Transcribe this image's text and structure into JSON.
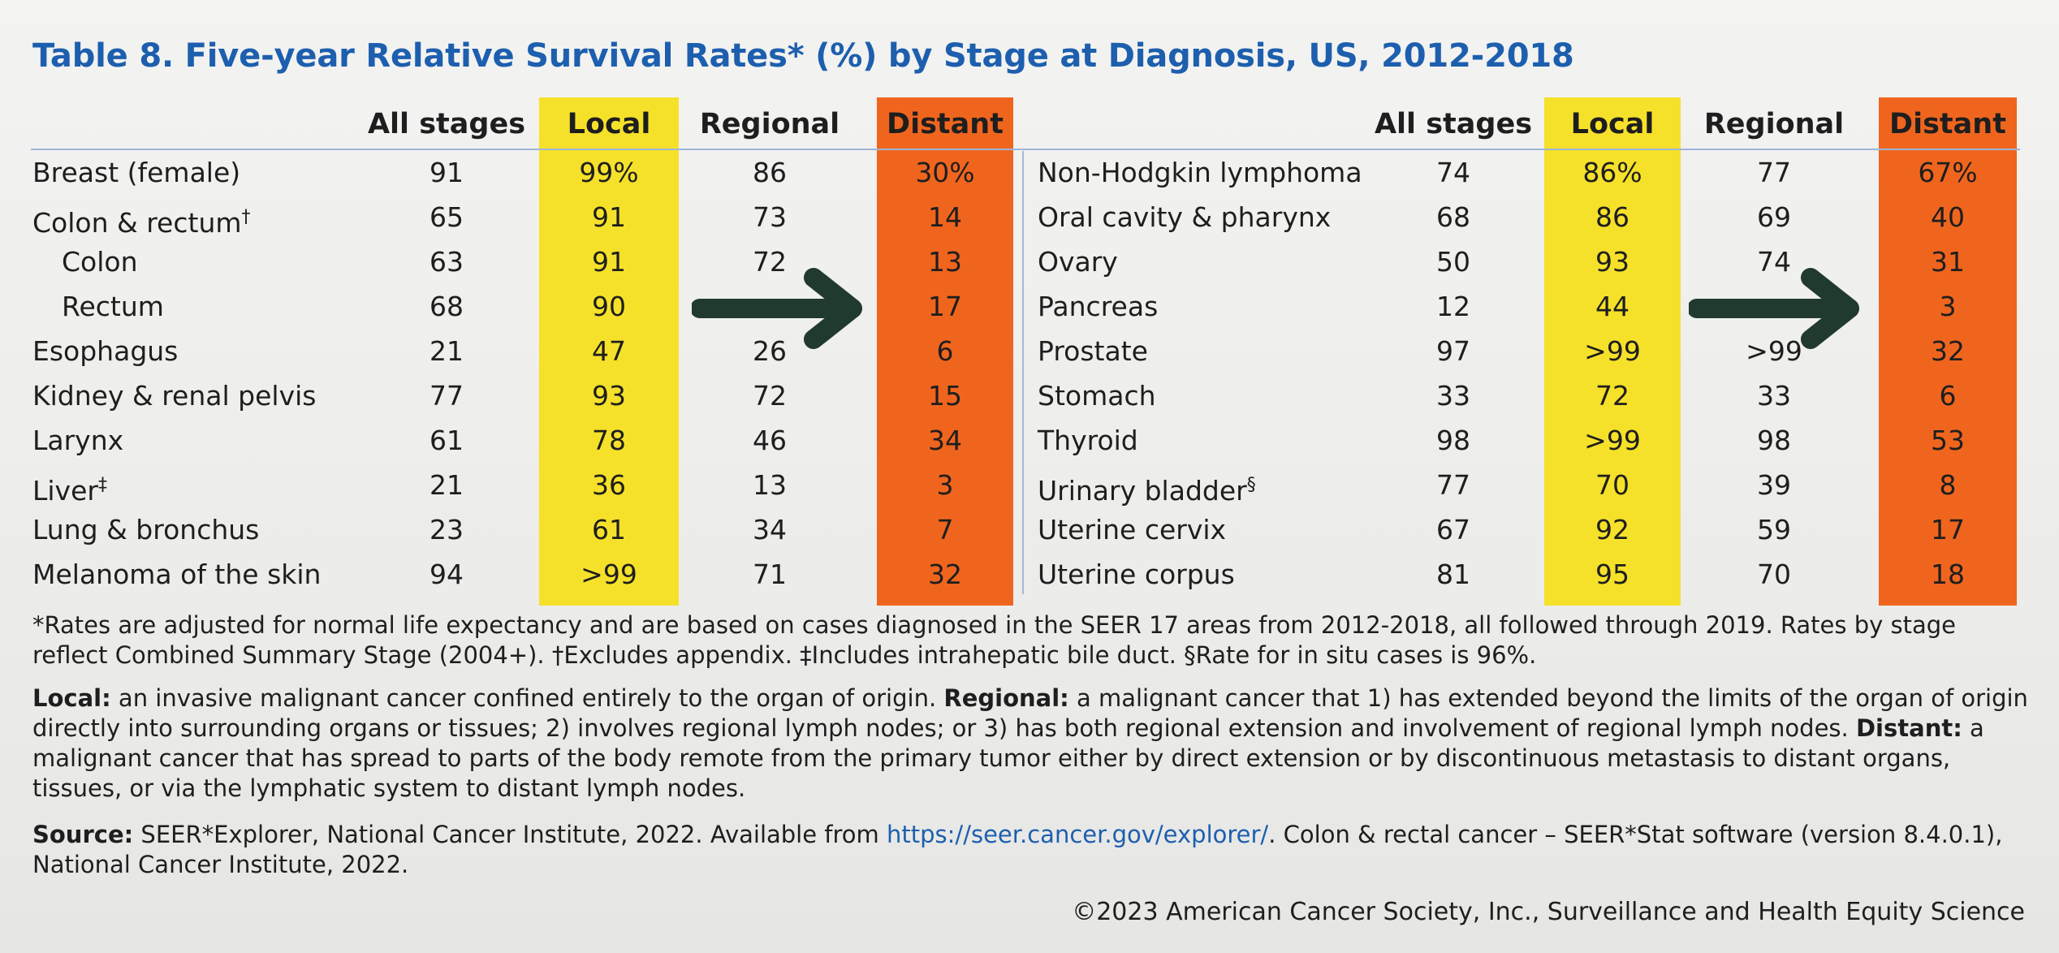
{
  "title": "Table 8. Five-year Relative Survival Rates* (%) by Stage at Diagnosis, US, 2012-2018",
  "colors": {
    "title": "#1d5fae",
    "local_band": "#f6e12a",
    "distant_band": "#f0651e",
    "arrow": "#213a30"
  },
  "headers": {
    "all_stages": "All stages",
    "local": "Local",
    "regional": "Regional",
    "distant": "Distant"
  },
  "left_table": [
    {
      "name": "Breast (female)",
      "all": "91",
      "local": "99%",
      "regional": "86",
      "distant": "30%"
    },
    {
      "name": "Colon & rectum",
      "mark": "†",
      "all": "65",
      "local": "91",
      "regional": "73",
      "distant": "14"
    },
    {
      "name": "Colon",
      "all": "63",
      "local": "91",
      "regional": "72",
      "distant": "13"
    },
    {
      "name": "Rectum",
      "all": "68",
      "local": "90",
      "regional": "",
      "distant": "17"
    },
    {
      "name": "Esophagus",
      "all": "21",
      "local": "47",
      "regional": "26",
      "distant": "6"
    },
    {
      "name": "Kidney & renal pelvis",
      "all": "77",
      "local": "93",
      "regional": "72",
      "distant": "15"
    },
    {
      "name": "Larynx",
      "all": "61",
      "local": "78",
      "regional": "46",
      "distant": "34"
    },
    {
      "name": "Liver",
      "mark": "‡",
      "all": "21",
      "local": "36",
      "regional": "13",
      "distant": "3"
    },
    {
      "name": "Lung & bronchus",
      "all": "23",
      "local": "61",
      "regional": "34",
      "distant": "7"
    },
    {
      "name": "Melanoma of the skin",
      "all": "94",
      "local": ">99",
      "regional": "71",
      "distant": "32"
    }
  ],
  "right_table": [
    {
      "name": "Non-Hodgkin lymphoma",
      "all": "74",
      "local": "86%",
      "regional": "77",
      "distant": "67%"
    },
    {
      "name": "Oral cavity & pharynx",
      "all": "68",
      "local": "86",
      "regional": "69",
      "distant": "40"
    },
    {
      "name": "Ovary",
      "all": "50",
      "local": "93",
      "regional": "74",
      "distant": "31"
    },
    {
      "name": "Pancreas",
      "all": "12",
      "local": "44",
      "regional": "",
      "distant": "3"
    },
    {
      "name": "Prostate",
      "all": "97",
      "local": ">99",
      "regional": ">99",
      "distant": "32"
    },
    {
      "name": "Stomach",
      "all": "33",
      "local": "72",
      "regional": "33",
      "distant": "6"
    },
    {
      "name": "Thyroid",
      "all": "98",
      "local": ">99",
      "regional": "98",
      "distant": "53"
    },
    {
      "name": "Urinary bladder",
      "mark": "§",
      "all": "77",
      "local": "70",
      "regional": "39",
      "distant": "8"
    },
    {
      "name": "Uterine cervix",
      "all": "67",
      "local": "92",
      "regional": "59",
      "distant": "17"
    },
    {
      "name": "Uterine corpus",
      "all": "81",
      "local": "95",
      "regional": "70",
      "distant": "18"
    }
  ],
  "footnotes": {
    "rates_note": "*Rates are adjusted for normal life expectancy and are based on cases diagnosed in the SEER 17 areas from 2012-2018, all followed through 2019. Rates by stage reflect Combined Summary Stage (2004+). †Excludes appendix. ‡Includes intrahepatic bile duct. §Rate for in situ cases is 96%.",
    "local_label": "Local:",
    "local_text": " an invasive malignant cancer confined entirely to the organ of origin. ",
    "regional_label": "Regional:",
    "regional_text": " a malignant cancer that 1) has extended beyond the limits of the organ of origin directly into surrounding organs or tissues; 2) involves regional lymph nodes; or 3) has both regional extension and involvement of regional lymph nodes. ",
    "distant_label": "Distant:",
    "distant_text": " a malignant cancer that has spread to parts of the body remote from the primary tumor either by direct extension or by discontinuous metastasis to distant organs, tissues, or via the lymphatic system to distant lymph nodes.",
    "source_label": "Source:",
    "source_text_1": " SEER*Explorer, National Cancer Institute, 2022. Available from ",
    "source_link": "https://seer.cancer.gov/explorer/",
    "source_text_2": ". Colon & rectal cancer – SEER*Stat software (version 8.4.0.1), National Cancer Institute, 2022."
  },
  "copyright": "©2023 American Cancer Society, Inc., Surveillance and Health Equity Science"
}
